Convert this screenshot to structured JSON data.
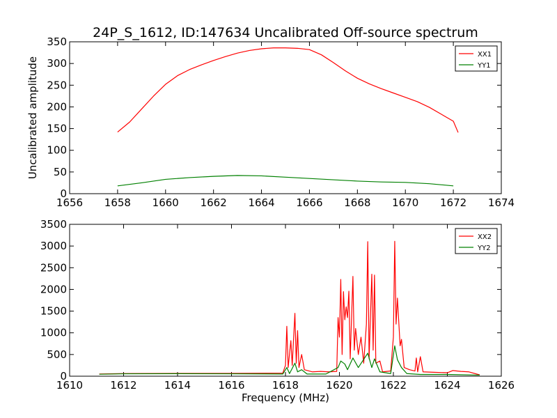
{
  "title": "24P_S_1612, ID:147634 Uncalibrated Off-source spectrum",
  "colors": {
    "XX": "#ff0000",
    "YY": "#008000",
    "axes": "#000000",
    "background": "#ffffff"
  },
  "chart_data": [
    {
      "type": "line",
      "ylabel": "Uncalibrated amplitude",
      "xlabel": "",
      "xlim": [
        1656,
        1674
      ],
      "ylim": [
        0,
        350
      ],
      "xticks": [
        1656,
        1658,
        1660,
        1662,
        1664,
        1666,
        1668,
        1670,
        1672,
        1674
      ],
      "yticks": [
        0,
        50,
        100,
        150,
        200,
        250,
        300,
        350
      ],
      "grid": false,
      "legend_position": "top-right",
      "series": [
        {
          "name": "XX1",
          "color": "#ff0000",
          "points": [
            [
              1658,
              142
            ],
            [
              1658.5,
              165
            ],
            [
              1659,
              195
            ],
            [
              1659.5,
              225
            ],
            [
              1660,
              252
            ],
            [
              1660.5,
              272
            ],
            [
              1661,
              286
            ],
            [
              1661.5,
              297
            ],
            [
              1662,
              307
            ],
            [
              1662.5,
              316
            ],
            [
              1663,
              324
            ],
            [
              1663.5,
              330
            ],
            [
              1664,
              334
            ],
            [
              1664.5,
              336
            ],
            [
              1665,
              336
            ],
            [
              1665.5,
              335
            ],
            [
              1666,
              332
            ],
            [
              1666.5,
              320
            ],
            [
              1667,
              302
            ],
            [
              1667.5,
              283
            ],
            [
              1668,
              266
            ],
            [
              1668.5,
              253
            ],
            [
              1669,
              242
            ],
            [
              1669.5,
              232
            ],
            [
              1670,
              222
            ],
            [
              1670.5,
              212
            ],
            [
              1671,
              199
            ],
            [
              1671.5,
              183
            ],
            [
              1672,
              167
            ],
            [
              1672.2,
              141
            ]
          ]
        },
        {
          "name": "YY1",
          "color": "#008000",
          "points": [
            [
              1658,
              18
            ],
            [
              1659,
              25
            ],
            [
              1660,
              33
            ],
            [
              1661,
              37
            ],
            [
              1662,
              40
            ],
            [
              1663,
              42
            ],
            [
              1664,
              41
            ],
            [
              1665,
              38
            ],
            [
              1666,
              35
            ],
            [
              1667,
              32
            ],
            [
              1668,
              29
            ],
            [
              1669,
              27
            ],
            [
              1670,
              26
            ],
            [
              1671,
              23
            ],
            [
              1672,
              18
            ]
          ]
        }
      ]
    },
    {
      "type": "line",
      "ylabel": "",
      "xlabel": "Frequency (MHz)",
      "xlim": [
        1610,
        1626
      ],
      "ylim": [
        0,
        3500
      ],
      "xticks": [
        1610,
        1612,
        1614,
        1616,
        1618,
        1620,
        1622,
        1624,
        1626
      ],
      "yticks": [
        0,
        500,
        1000,
        1500,
        2000,
        2500,
        3000,
        3500
      ],
      "grid": false,
      "legend_position": "top-right",
      "series": [
        {
          "name": "XX2",
          "color": "#ff0000",
          "points": [
            [
              1611.1,
              50
            ],
            [
              1612,
              60
            ],
            [
              1614,
              65
            ],
            [
              1616,
              65
            ],
            [
              1617.9,
              70
            ],
            [
              1618.0,
              250
            ],
            [
              1618.05,
              1150
            ],
            [
              1618.1,
              200
            ],
            [
              1618.2,
              820
            ],
            [
              1618.25,
              250
            ],
            [
              1618.35,
              1450
            ],
            [
              1618.4,
              300
            ],
            [
              1618.45,
              1050
            ],
            [
              1618.5,
              200
            ],
            [
              1618.6,
              500
            ],
            [
              1618.7,
              150
            ],
            [
              1619.0,
              100
            ],
            [
              1619.3,
              110
            ],
            [
              1619.6,
              100
            ],
            [
              1619.9,
              110
            ],
            [
              1619.95,
              1350
            ],
            [
              1620.0,
              900
            ],
            [
              1620.05,
              2230
            ],
            [
              1620.1,
              500
            ],
            [
              1620.15,
              1950
            ],
            [
              1620.2,
              1300
            ],
            [
              1620.25,
              1600
            ],
            [
              1620.3,
              1350
            ],
            [
              1620.35,
              1960
            ],
            [
              1620.4,
              400
            ],
            [
              1620.5,
              2300
            ],
            [
              1620.55,
              600
            ],
            [
              1620.6,
              1100
            ],
            [
              1620.7,
              500
            ],
            [
              1620.8,
              900
            ],
            [
              1620.9,
              300
            ],
            [
              1621.0,
              1200
            ],
            [
              1621.05,
              3100
            ],
            [
              1621.1,
              400
            ],
            [
              1621.2,
              2350
            ],
            [
              1621.25,
              600
            ],
            [
              1621.3,
              2330
            ],
            [
              1621.35,
              300
            ],
            [
              1621.5,
              350
            ],
            [
              1621.6,
              100
            ],
            [
              1621.9,
              120
            ],
            [
              1622.0,
              900
            ],
            [
              1622.05,
              3110
            ],
            [
              1622.1,
              1200
            ],
            [
              1622.15,
              1800
            ],
            [
              1622.25,
              700
            ],
            [
              1622.3,
              850
            ],
            [
              1622.4,
              200
            ],
            [
              1622.6,
              150
            ],
            [
              1622.8,
              120
            ],
            [
              1622.85,
              420
            ],
            [
              1622.9,
              100
            ],
            [
              1623.0,
              450
            ],
            [
              1623.1,
              100
            ],
            [
              1623.5,
              90
            ],
            [
              1624.0,
              80
            ],
            [
              1624.2,
              130
            ],
            [
              1624.5,
              110
            ],
            [
              1624.8,
              100
            ],
            [
              1625.2,
              30
            ]
          ]
        },
        {
          "name": "YY2",
          "color": "#008000",
          "points": [
            [
              1611.1,
              45
            ],
            [
              1612,
              55
            ],
            [
              1614,
              58
            ],
            [
              1616,
              55
            ],
            [
              1617.9,
              50
            ],
            [
              1618.05,
              200
            ],
            [
              1618.15,
              60
            ],
            [
              1618.35,
              300
            ],
            [
              1618.45,
              100
            ],
            [
              1618.6,
              150
            ],
            [
              1618.8,
              50
            ],
            [
              1619.5,
              50
            ],
            [
              1619.95,
              200
            ],
            [
              1620.05,
              350
            ],
            [
              1620.2,
              280
            ],
            [
              1620.3,
              150
            ],
            [
              1620.5,
              420
            ],
            [
              1620.7,
              200
            ],
            [
              1621.05,
              530
            ],
            [
              1621.2,
              200
            ],
            [
              1621.3,
              400
            ],
            [
              1621.5,
              100
            ],
            [
              1621.9,
              60
            ],
            [
              1622.05,
              700
            ],
            [
              1622.15,
              380
            ],
            [
              1622.3,
              200
            ],
            [
              1622.5,
              60
            ],
            [
              1623.0,
              40
            ],
            [
              1624.0,
              40
            ],
            [
              1625.2,
              25
            ]
          ]
        }
      ]
    }
  ]
}
